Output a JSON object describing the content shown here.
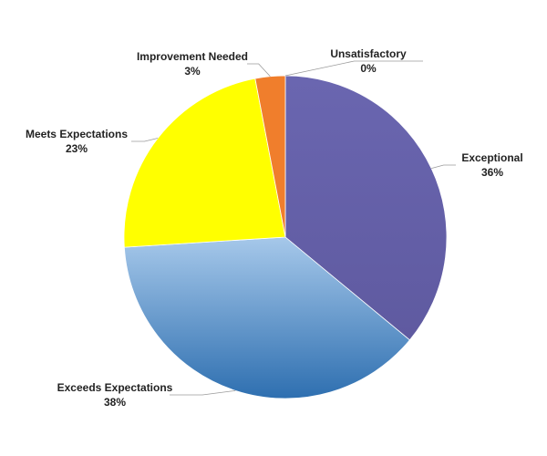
{
  "chart_data": {
    "type": "pie",
    "title": "",
    "legend": "none",
    "slices": [
      {
        "name": "Exceptional",
        "value": 36,
        "label": "36%",
        "color_top": "#6a66b0",
        "color_bottom": "#5f5aa0"
      },
      {
        "name": "Exceeds Expectations",
        "value": 38,
        "label": "38%",
        "color_top": "#a6c8ea",
        "color_bottom": "#2e6fb0"
      },
      {
        "name": "Meets Expectations",
        "value": 23,
        "label": "23%",
        "color_top": "#ffff00",
        "color_bottom": "#ffff00"
      },
      {
        "name": "Improvement Needed",
        "value": 3,
        "label": "3%",
        "color_top": "#f07e2c",
        "color_bottom": "#f07e2c"
      },
      {
        "name": "Unsatisfactory",
        "value": 0,
        "label": "0%",
        "color_top": "#c0504d",
        "color_bottom": "#c0504d"
      }
    ]
  }
}
